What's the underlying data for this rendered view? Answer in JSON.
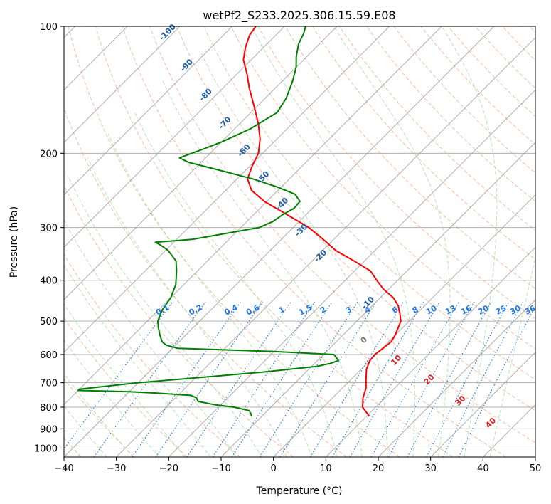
{
  "chart_data": {
    "type": "line",
    "subtype": "skew-t log-p diagram",
    "title": "wetPf2_S233.2025.306.15.59.E08",
    "xlabel": "Temperature (°C)",
    "ylabel": "Pressure (hPa)",
    "xlim": [
      -40,
      50
    ],
    "ylim": [
      1050,
      100
    ],
    "yscale": "log",
    "grid": true,
    "xticks": [
      -40,
      -30,
      -20,
      -10,
      0,
      10,
      20,
      30,
      40,
      50
    ],
    "yticks": [
      100,
      200,
      300,
      400,
      500,
      600,
      700,
      800,
      900,
      1000
    ],
    "colors": {
      "temperature": "#ff0000",
      "dewpoint": "#008000",
      "dry_adiabat": "#f4a582",
      "moist_adiabat": "#a6dba0",
      "mixing_ratio": "#1f77e0",
      "isotherm": "#999999",
      "wet_bulb_label": "#1f5fa8",
      "isotherm_label": "#d62728"
    },
    "series": [
      {
        "key": "temperature",
        "pressure": [
          840,
          800,
          760,
          720,
          690,
          650,
          620,
          600,
          590,
          560,
          540,
          500,
          480,
          460,
          440,
          420,
          400,
          380,
          360,
          340,
          320,
          300,
          280,
          260,
          245,
          230,
          215,
          200,
          185,
          170,
          155,
          140,
          130,
          120,
          112,
          105,
          100
        ],
        "temperature": [
          10.5,
          7.5,
          5.8,
          4.5,
          3.0,
          1.0,
          0,
          -0.2,
          0,
          0.5,
          0,
          -1.6,
          -3.2,
          -5.0,
          -7.5,
          -11.0,
          -14.0,
          -17.0,
          -22.0,
          -27.5,
          -32.0,
          -37.0,
          -43.5,
          -50.5,
          -55.0,
          -58.0,
          -59.5,
          -60.8,
          -63.2,
          -66.5,
          -70.5,
          -75.0,
          -78.0,
          -81.5,
          -83.5,
          -85.0,
          -85.5
        ]
      },
      {
        "key": "dewpoint",
        "pressure": [
          840,
          830,
          815,
          800,
          790,
          775,
          760,
          750,
          740,
          735,
          730,
          725,
          720,
          700,
          660,
          640,
          630,
          620,
          600,
          590,
          580,
          570,
          560,
          540,
          520,
          500,
          470,
          440,
          410,
          380,
          360,
          340,
          330,
          325,
          320,
          300,
          290,
          280,
          270,
          260,
          250,
          240,
          230,
          220,
          210,
          205,
          195,
          188,
          175,
          160,
          148,
          135,
          125,
          118,
          110,
          104,
          100
        ],
        "dewpoint": [
          -12,
          -12.5,
          -13.5,
          -17,
          -21,
          -25,
          -26,
          -27.5,
          -35,
          -40,
          -50,
          -50,
          -48,
          -40,
          -18,
          -9,
          -7,
          -6,
          -8,
          -20,
          -39,
          -41.8,
          -43.2,
          -44.9,
          -46.5,
          -48.0,
          -49.3,
          -50.0,
          -51.5,
          -54.0,
          -56.0,
          -59.5,
          -62.0,
          -63.5,
          -57.0,
          -46.5,
          -45.0,
          -44.5,
          -43.5,
          -43.7,
          -46.0,
          -51.0,
          -57.0,
          -64.5,
          -72.5,
          -75.0,
          -72.0,
          -70.0,
          -67.0,
          -65.0,
          -66.0,
          -68.0,
          -70.0,
          -72.0,
          -74.0,
          -75.0,
          -76.0
        ]
      }
    ],
    "mixing_ratio_labels": [
      "0.1",
      "0.2",
      "0.4",
      "0.6",
      "1",
      "1.5",
      "2",
      "3",
      "4",
      "6",
      "8",
      "10",
      "13",
      "16",
      "20",
      "25",
      "30",
      "36"
    ],
    "wet_bulb_labels": [
      "-100",
      "-90",
      "-80",
      "-70",
      "-60",
      "-50",
      "-40",
      "-30",
      "-20",
      "-10"
    ],
    "isotherm_labels": [
      "0",
      "10",
      "20",
      "30",
      "40"
    ]
  }
}
